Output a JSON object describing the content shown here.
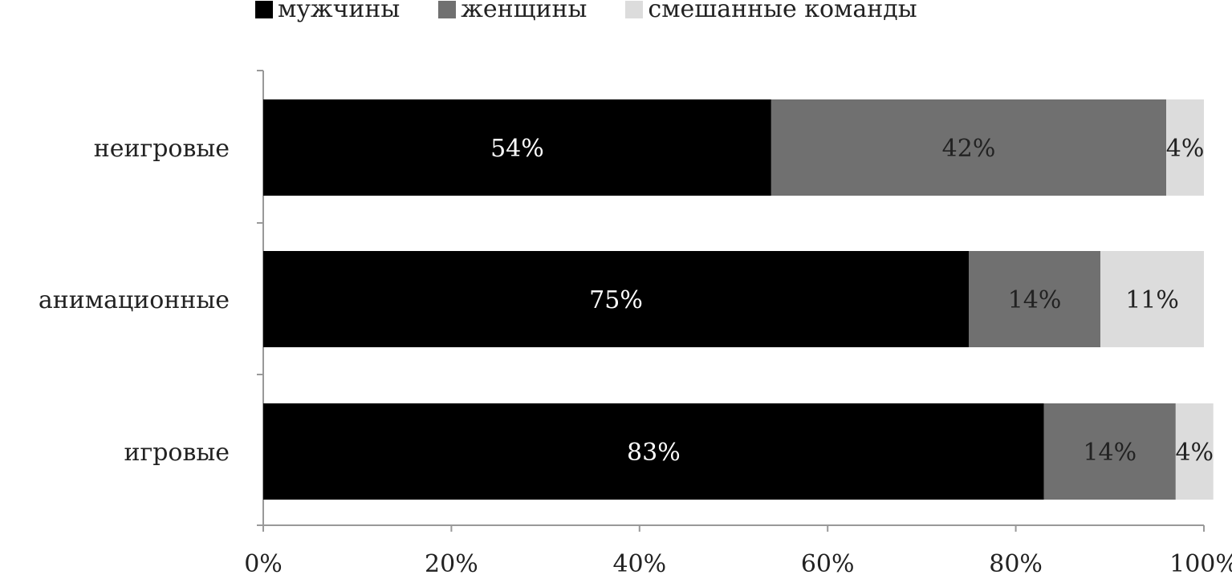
{
  "chart_data": {
    "type": "bar",
    "orientation": "horizontal",
    "stacked": true,
    "percent_stacked": true,
    "categories": [
      "неигровые",
      "анимационные",
      "игровые"
    ],
    "series": [
      {
        "name": "мужчины",
        "color": "#000000",
        "label_color": "#ffffff",
        "values": [
          54,
          75,
          83
        ],
        "labels": [
          "54%",
          "75%",
          "83%"
        ]
      },
      {
        "name": "женщины",
        "color": "#707070",
        "label_color": "#222222",
        "values": [
          42,
          14,
          14
        ],
        "labels": [
          "42%",
          "14%",
          "14%"
        ]
      },
      {
        "name": "смешанные команды",
        "color": "#dcdcdc",
        "label_color": "#222222",
        "values": [
          4,
          11,
          4
        ],
        "labels": [
          "4%",
          "11%",
          "4%"
        ]
      }
    ],
    "x_ticks": [
      "0%",
      "20%",
      "40%",
      "60%",
      "80%",
      "100%"
    ],
    "xlim": [
      0,
      100
    ],
    "legend_position": "top",
    "grid": false
  }
}
